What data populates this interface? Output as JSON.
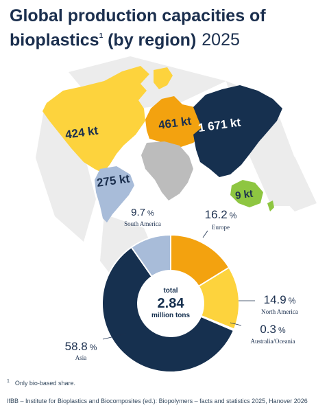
{
  "header": {
    "title_line1": "Global production capacities of",
    "title_line2_main": "bioplastics",
    "title_footnote_mark": "1",
    "title_line2_rest": " (by region)",
    "year": "2025"
  },
  "colors": {
    "europe": "#f3a20f",
    "north_america": "#fdd33d",
    "asia": "#16304f",
    "south_america": "#a8bcd9",
    "australia_oceania": "#8ec641",
    "africa": "#bcbcbc",
    "background_shape": "#ececec"
  },
  "chart_data": {
    "type": "pie",
    "title": "Global production capacities of bioplastics (by region) 2025",
    "total": {
      "label_top": "total",
      "value": "2.84",
      "label_bottom": "million tons"
    },
    "slices": [
      {
        "name": "Europe",
        "value": 16.2,
        "display": "16.2",
        "unit": "%",
        "color": "#f3a20f"
      },
      {
        "name": "North America",
        "value": 14.9,
        "display": "14.9",
        "unit": "%",
        "color": "#fdd33d"
      },
      {
        "name": "Australia/Oceania",
        "value": 0.3,
        "display": "0.3",
        "unit": "%",
        "color": "#8ec641"
      },
      {
        "name": "Asia",
        "value": 58.8,
        "display": "58.8",
        "unit": "%",
        "color": "#16304f"
      },
      {
        "name": "South America",
        "value": 9.7,
        "display": "9.7",
        "unit": "%",
        "color": "#a8bcd9"
      }
    ],
    "map_labels": [
      {
        "region": "North America",
        "text": "424 kt"
      },
      {
        "region": "Europe",
        "text": "461 kt"
      },
      {
        "region": "Asia",
        "text": "1 671 kt"
      },
      {
        "region": "South America",
        "text": "275 kt"
      },
      {
        "region": "Australia/Oceania",
        "text": "9 kt"
      }
    ]
  },
  "footnote": {
    "mark": "1",
    "text": "Only bio-based share."
  },
  "source": "IfBB – Institute for Bioplastics and Biocomposites (ed.): Biopolymers – facts and statistics 2025, Hanover 2026"
}
